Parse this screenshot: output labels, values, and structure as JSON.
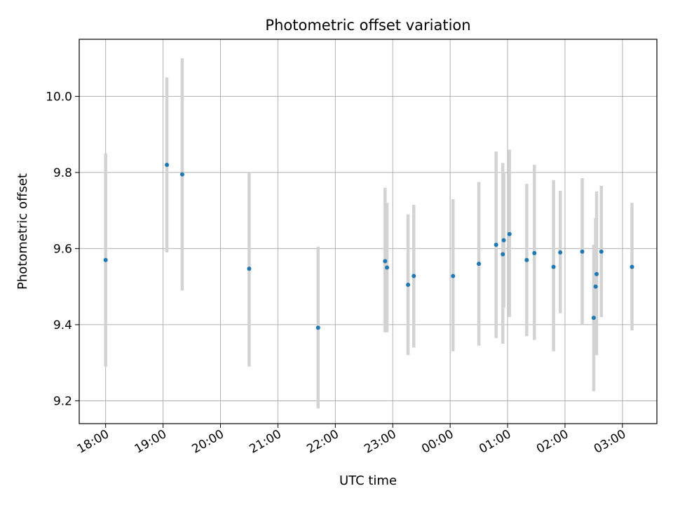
{
  "chart_data": {
    "type": "scatter",
    "title": "Photometric offset variation",
    "xlabel": "UTC time",
    "ylabel": "Photometric offset",
    "x_start_label": "18:00",
    "xlim_hours": [
      17.54,
      27.6
    ],
    "ylim": [
      9.14,
      10.15
    ],
    "yticks": [
      9.2,
      9.4,
      9.6,
      9.8,
      10.0
    ],
    "ytick_labels": [
      "9.2",
      "9.4",
      "9.6",
      "9.8",
      "10.0"
    ],
    "xticks_hours": [
      18,
      19,
      20,
      21,
      22,
      23,
      24,
      25,
      26,
      27
    ],
    "xtick_labels": [
      "18:00",
      "19:00",
      "20:00",
      "21:00",
      "22:00",
      "23:00",
      "00:00",
      "01:00",
      "02:00",
      "03:00"
    ],
    "grid": true,
    "marker_color": "#1f77b4",
    "errorbar_color": "#d3d3d3",
    "points": [
      {
        "t": "18:00",
        "y": 9.57,
        "err_low": 9.29,
        "err_high": 9.85
      },
      {
        "t": "19:04",
        "y": 9.82,
        "err_low": 9.59,
        "err_high": 10.05
      },
      {
        "t": "19:20",
        "y": 9.795,
        "err_low": 9.49,
        "err_high": 10.1
      },
      {
        "t": "20:30",
        "y": 9.547,
        "err_low": 9.29,
        "err_high": 9.8
      },
      {
        "t": "21:42",
        "y": 9.392,
        "err_low": 9.18,
        "err_high": 9.605
      },
      {
        "t": "22:52",
        "y": 9.567,
        "err_low": 9.38,
        "err_high": 9.76
      },
      {
        "t": "22:54",
        "y": 9.55,
        "err_low": 9.38,
        "err_high": 9.72
      },
      {
        "t": "23:16",
        "y": 9.505,
        "err_low": 9.32,
        "err_high": 9.69
      },
      {
        "t": "23:22",
        "y": 9.528,
        "err_low": 9.34,
        "err_high": 9.715
      },
      {
        "t": "00:03",
        "y": 9.528,
        "err_low": 9.33,
        "err_high": 9.73
      },
      {
        "t": "00:30",
        "y": 9.56,
        "err_low": 9.345,
        "err_high": 9.775
      },
      {
        "t": "00:48",
        "y": 9.61,
        "err_low": 9.365,
        "err_high": 9.855
      },
      {
        "t": "00:55",
        "y": 9.585,
        "err_low": 9.35,
        "err_high": 9.825
      },
      {
        "t": "00:56",
        "y": 9.622,
        "err_low": 9.445,
        "err_high": 9.8
      },
      {
        "t": "01:02",
        "y": 9.638,
        "err_low": 9.42,
        "err_high": 9.86
      },
      {
        "t": "01:20",
        "y": 9.57,
        "err_low": 9.37,
        "err_high": 9.77
      },
      {
        "t": "01:28",
        "y": 9.588,
        "err_low": 9.36,
        "err_high": 9.82
      },
      {
        "t": "01:48",
        "y": 9.552,
        "err_low": 9.33,
        "err_high": 9.78
      },
      {
        "t": "01:55",
        "y": 9.59,
        "err_low": 9.43,
        "err_high": 9.752
      },
      {
        "t": "02:18",
        "y": 9.592,
        "err_low": 9.4,
        "err_high": 9.785
      },
      {
        "t": "02:30",
        "y": 9.418,
        "err_low": 9.225,
        "err_high": 9.61
      },
      {
        "t": "02:32",
        "y": 9.5,
        "err_low": 9.32,
        "err_high": 9.68
      },
      {
        "t": "02:33",
        "y": 9.533,
        "err_low": 9.32,
        "err_high": 9.75
      },
      {
        "t": "02:38",
        "y": 9.592,
        "err_low": 9.42,
        "err_high": 9.765
      },
      {
        "t": "03:10",
        "y": 9.552,
        "err_low": 9.385,
        "err_high": 9.72
      }
    ]
  }
}
